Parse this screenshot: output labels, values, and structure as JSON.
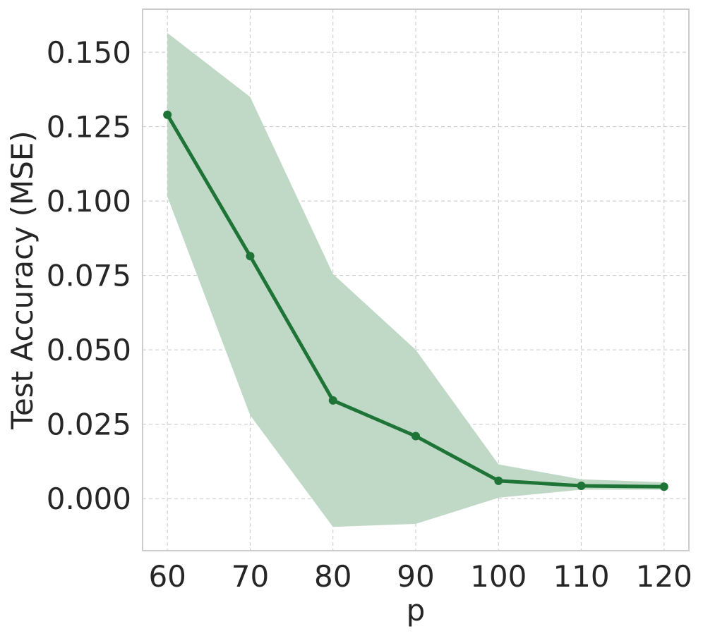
{
  "chart_data": {
    "type": "line",
    "title": "",
    "xlabel": "p",
    "ylabel": "Test Accuracy (MSE)",
    "x": [
      60,
      70,
      80,
      90,
      100,
      110,
      120
    ],
    "series": [
      {
        "values": [
          0.129,
          0.0815,
          0.033,
          0.021,
          0.006,
          0.0043,
          0.004
        ],
        "lower": [
          0.1015,
          0.028,
          -0.0095,
          -0.0085,
          0.0003,
          0.003,
          0.003
        ],
        "upper": [
          0.1565,
          0.135,
          0.0755,
          0.05,
          0.0115,
          0.0065,
          0.0055
        ]
      }
    ],
    "xlim": [
      57,
      123
    ],
    "ylim": [
      -0.0175,
      0.1645
    ],
    "xticks": [
      60,
      70,
      80,
      90,
      100,
      110,
      120
    ],
    "xtick_labels": [
      "60",
      "70",
      "80",
      "90",
      "100",
      "110",
      "120"
    ],
    "yticks": [
      0.0,
      0.025,
      0.05,
      0.075,
      0.1,
      0.125,
      0.15
    ],
    "ytick_labels": [
      "0.000",
      "0.025",
      "0.050",
      "0.075",
      "0.100",
      "0.125",
      "0.150"
    ],
    "grid": true,
    "legend": "none",
    "colors": {
      "line": "#1e7436",
      "band": "#bcd7c3",
      "background": "#ffffff",
      "text": "#262626",
      "grid": "#c8c8c8",
      "frame": "#cccccc"
    }
  }
}
